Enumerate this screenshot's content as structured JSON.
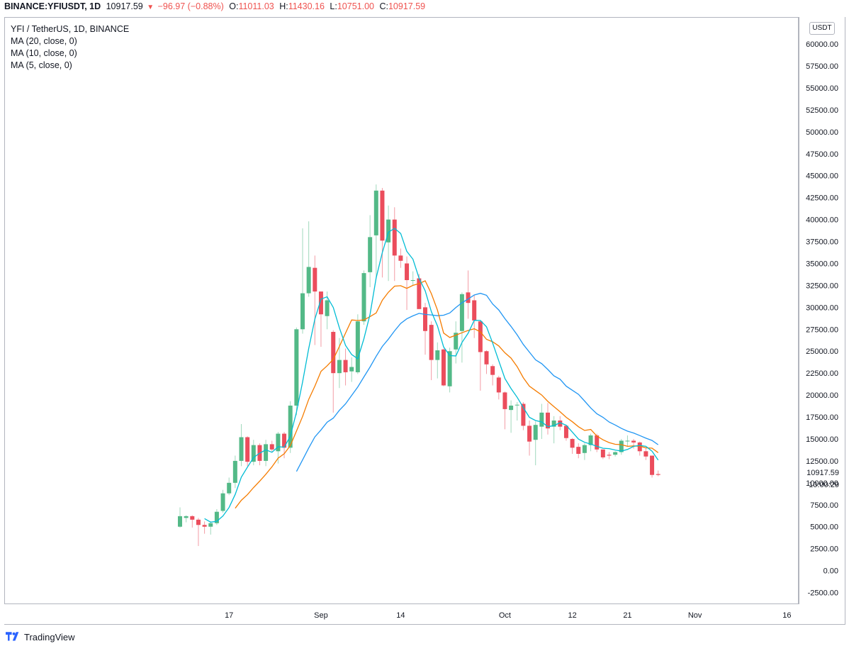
{
  "header": {
    "symbol": "BINANCE:YFIUSDT, 1D",
    "last": "10917.59",
    "change": "−96.97 (−0.88%)",
    "o_label": "O:",
    "o": "11011.03",
    "h_label": "H:",
    "h": "11430.16",
    "l_label": "L:",
    "l": "10751.00",
    "c_label": "C:",
    "c": "10917.59"
  },
  "legend": {
    "title": "YFI / TetherUS, 1D, BINANCE",
    "ma20": "MA (20, close, 0)",
    "ma10": "MA (10, close, 0)",
    "ma5": "MA (5, close, 0)"
  },
  "currency": "USDT",
  "price_tag": "10917.59",
  "countdown": "10:00:29",
  "footer": {
    "brand": "TradingView"
  },
  "colors": {
    "up": "#53b987",
    "down": "#eb4d5c",
    "ma20": "#2196f3",
    "ma10": "#f57c00",
    "ma5": "#00bcd4"
  },
  "chart_data": {
    "type": "candlestick",
    "ylim": [
      -3750,
      63000
    ],
    "y_ticks": [
      -2500,
      0,
      2500,
      5000,
      7500,
      10000,
      12500,
      15000,
      17500,
      20000,
      22500,
      25000,
      27500,
      30000,
      32500,
      35000,
      37500,
      40000,
      42500,
      45000,
      47500,
      50000,
      52500,
      55000,
      57500,
      60000
    ],
    "x_tick_labels": [
      {
        "index": 8,
        "label": "17"
      },
      {
        "index": 23,
        "label": "Sep"
      },
      {
        "index": 36,
        "label": "14"
      },
      {
        "index": 53,
        "label": "Oct"
      },
      {
        "index": 64,
        "label": "12"
      },
      {
        "index": 73,
        "label": "21"
      },
      {
        "index": 84,
        "label": "Nov"
      },
      {
        "index": 99,
        "label": "16"
      }
    ],
    "candles": [
      [
        5000,
        6200,
        7200,
        4900
      ],
      [
        6000,
        6200,
        6300,
        5500
      ],
      [
        6200,
        5800,
        6300,
        4900
      ],
      [
        5800,
        5200,
        6000,
        2800
      ],
      [
        5200,
        5000,
        5600,
        4200
      ],
      [
        5000,
        5400,
        5600,
        4100
      ],
      [
        5400,
        6700,
        7000,
        5200
      ],
      [
        6800,
        8800,
        9200,
        6600
      ],
      [
        8800,
        10000,
        10600,
        8600
      ],
      [
        10000,
        12500,
        13100,
        9400
      ],
      [
        12500,
        15200,
        16700,
        11900
      ],
      [
        15200,
        12400,
        15300,
        11900
      ],
      [
        12400,
        14300,
        14900,
        12000
      ],
      [
        14300,
        12500,
        14500,
        12000
      ],
      [
        12500,
        14400,
        14900,
        11900
      ],
      [
        14400,
        13800,
        14800,
        13500
      ],
      [
        13600,
        15600,
        15800,
        12200
      ],
      [
        15600,
        14000,
        15800,
        12800
      ],
      [
        14000,
        18800,
        19300,
        13400
      ],
      [
        18800,
        27500,
        27700,
        17700
      ],
      [
        27500,
        31600,
        39000,
        27000
      ],
      [
        31600,
        34600,
        39800,
        31200
      ],
      [
        34500,
        31800,
        35900,
        25700
      ],
      [
        31800,
        29200,
        31800,
        25500
      ],
      [
        29000,
        30800,
        31800,
        27500
      ],
      [
        27200,
        22500,
        27400,
        18000
      ],
      [
        22500,
        24000,
        26500,
        20800
      ],
      [
        24000,
        22600,
        25300,
        21100
      ],
      [
        22700,
        23200,
        24300,
        21500
      ],
      [
        22600,
        28400,
        29200,
        22400
      ],
      [
        28400,
        33900,
        34200,
        28000
      ],
      [
        34000,
        38000,
        40500,
        32300
      ],
      [
        38200,
        43300,
        44000,
        33300
      ],
      [
        43300,
        37600,
        43600,
        33400
      ],
      [
        37400,
        40000,
        41600,
        33000
      ],
      [
        40000,
        35900,
        41400,
        33000
      ],
      [
        35900,
        35300,
        36700,
        34500
      ],
      [
        35000,
        33100,
        35800,
        29700
      ],
      [
        33100,
        33100,
        34100,
        32500
      ],
      [
        33300,
        29800,
        33800,
        30500
      ],
      [
        30000,
        27300,
        30500,
        24600
      ],
      [
        28000,
        24000,
        28400,
        21700
      ],
      [
        24000,
        25100,
        26000,
        21900
      ],
      [
        25200,
        21100,
        25300,
        21000
      ],
      [
        21000,
        25000,
        25400,
        20300
      ],
      [
        25200,
        27100,
        28400,
        23600
      ],
      [
        27300,
        31500,
        31700,
        23700
      ],
      [
        31700,
        30500,
        34200,
        28700
      ],
      [
        30800,
        28500,
        31400,
        26500
      ],
      [
        28400,
        24900,
        28500,
        20500
      ],
      [
        25000,
        23500,
        25100,
        22400
      ],
      [
        23300,
        22300,
        23500,
        21100
      ],
      [
        22000,
        20300,
        22200,
        19500
      ],
      [
        20300,
        18400,
        20400,
        16100
      ],
      [
        18300,
        18800,
        19400,
        15700
      ],
      [
        18900,
        18900,
        19200,
        17100
      ],
      [
        19000,
        16500,
        19200,
        16000
      ],
      [
        16500,
        14700,
        17100,
        13100
      ],
      [
        14900,
        16600,
        17000,
        12000
      ],
      [
        16400,
        18000,
        19000,
        15000
      ],
      [
        18000,
        16200,
        19100,
        15500
      ],
      [
        16400,
        17100,
        17600,
        14500
      ],
      [
        17100,
        16400,
        17600,
        16000
      ],
      [
        16500,
        15100,
        16600,
        14800
      ],
      [
        15000,
        14000,
        15100,
        13300
      ],
      [
        14100,
        13300,
        14500,
        12800
      ],
      [
        13400,
        14300,
        14500,
        12600
      ],
      [
        14300,
        15400,
        15600,
        13600
      ],
      [
        15400,
        13800,
        15600,
        13500
      ],
      [
        13800,
        12900,
        13800,
        12700
      ],
      [
        13200,
        13100,
        13500,
        12700
      ],
      [
        13200,
        13500,
        13600,
        13000
      ],
      [
        13500,
        14800,
        15000,
        13200
      ],
      [
        14800,
        14800,
        15400,
        14100
      ],
      [
        14800,
        14600,
        15000,
        13900
      ],
      [
        14600,
        13600,
        14700,
        13100
      ],
      [
        13600,
        13000,
        14000,
        12600
      ],
      [
        13100,
        10900,
        13100,
        10600
      ],
      [
        11000,
        10900,
        11400,
        10750
      ]
    ],
    "ma5": [
      [
        4,
        5920
      ],
      [
        5,
        5520
      ],
      [
        6,
        5620
      ],
      [
        7,
        6220
      ],
      [
        8,
        7180
      ],
      [
        9,
        8680
      ],
      [
        10,
        10640
      ],
      [
        11,
        11780
      ],
      [
        12,
        12880
      ],
      [
        13,
        13380
      ],
      [
        14,
        13760
      ],
      [
        15,
        13480
      ],
      [
        16,
        14120
      ],
      [
        17,
        14060
      ],
      [
        18,
        15320
      ],
      [
        19,
        18080
      ],
      [
        20,
        21500
      ],
      [
        21,
        25300
      ],
      [
        22,
        28660
      ],
      [
        23,
        30940
      ],
      [
        24,
        31200
      ],
      [
        25,
        29980
      ],
      [
        26,
        27660
      ],
      [
        27,
        25660
      ],
      [
        28,
        24620
      ],
      [
        29,
        24140
      ],
      [
        30,
        26420
      ],
      [
        31,
        29220
      ],
      [
        32,
        33360
      ],
      [
        33,
        36240
      ],
      [
        34,
        38560
      ],
      [
        35,
        39000
      ],
      [
        36,
        38420
      ],
      [
        37,
        36380
      ],
      [
        38,
        35480
      ],
      [
        39,
        33300
      ],
      [
        40,
        31880
      ],
      [
        41,
        29500
      ],
      [
        42,
        27880
      ],
      [
        43,
        25480
      ],
      [
        44,
        24500
      ],
      [
        45,
        24460
      ],
      [
        46,
        26000
      ],
      [
        47,
        27040
      ],
      [
        48,
        28520
      ],
      [
        49,
        28500
      ],
      [
        50,
        27780
      ],
      [
        51,
        25920
      ],
      [
        52,
        23900
      ],
      [
        53,
        21880
      ],
      [
        54,
        20740
      ],
      [
        55,
        19740
      ],
      [
        56,
        18580
      ],
      [
        57,
        17460
      ],
      [
        58,
        17100
      ],
      [
        59,
        16940
      ],
      [
        60,
        16400
      ],
      [
        61,
        16520
      ],
      [
        62,
        16860
      ],
      [
        63,
        16560
      ],
      [
        64,
        15780
      ],
      [
        65,
        14980
      ],
      [
        66,
        14620
      ],
      [
        67,
        14420
      ],
      [
        68,
        14160
      ],
      [
        69,
        13940
      ],
      [
        70,
        13900
      ],
      [
        71,
        13740
      ],
      [
        72,
        13620
      ],
      [
        73,
        13800
      ],
      [
        74,
        14160
      ],
      [
        75,
        14260
      ],
      [
        76,
        14160
      ],
      [
        77,
        13600
      ],
      [
        78,
        12600
      ]
    ],
    "ma10": [
      [
        9,
        7100
      ],
      [
        10,
        8010
      ],
      [
        11,
        8650
      ],
      [
        12,
        9460
      ],
      [
        13,
        10190
      ],
      [
        14,
        10970
      ],
      [
        15,
        11830
      ],
      [
        16,
        12810
      ],
      [
        17,
        13320
      ],
      [
        18,
        14250
      ],
      [
        19,
        15900
      ],
      [
        20,
        17570
      ],
      [
        21,
        19510
      ],
      [
        22,
        21020
      ],
      [
        23,
        22710
      ],
      [
        24,
        23340
      ],
      [
        25,
        24070
      ],
      [
        26,
        25540
      ],
      [
        27,
        27070
      ],
      [
        28,
        28560
      ],
      [
        29,
        28500
      ],
      [
        30,
        28560
      ],
      [
        31,
        28950
      ],
      [
        32,
        29360
      ],
      [
        33,
        30810
      ],
      [
        34,
        31730
      ],
      [
        35,
        32410
      ],
      [
        36,
        32460
      ],
      [
        37,
        32160
      ],
      [
        38,
        32500
      ],
      [
        39,
        32700
      ],
      [
        40,
        33020
      ],
      [
        41,
        31560
      ],
      [
        42,
        29680
      ],
      [
        43,
        27060
      ],
      [
        44,
        26560
      ],
      [
        45,
        26830
      ],
      [
        46,
        27100
      ],
      [
        47,
        27360
      ],
      [
        48,
        27560
      ],
      [
        49,
        27200
      ],
      [
        50,
        26350
      ],
      [
        51,
        26070
      ],
      [
        52,
        25600
      ],
      [
        53,
        24820
      ],
      [
        54,
        24210
      ],
      [
        55,
        23230
      ],
      [
        56,
        21980
      ],
      [
        57,
        21020
      ],
      [
        58,
        20510
      ],
      [
        59,
        20000
      ],
      [
        60,
        19280
      ],
      [
        61,
        18680
      ],
      [
        62,
        18100
      ],
      [
        63,
        17460
      ],
      [
        64,
        16960
      ],
      [
        65,
        16390
      ],
      [
        66,
        15970
      ],
      [
        67,
        16080
      ],
      [
        68,
        15330
      ],
      [
        69,
        14900
      ],
      [
        70,
        14590
      ],
      [
        71,
        14390
      ],
      [
        72,
        14350
      ],
      [
        73,
        14160
      ],
      [
        74,
        14210
      ],
      [
        75,
        14170
      ],
      [
        76,
        13990
      ],
      [
        77,
        13950
      ],
      [
        78,
        13440
      ]
    ],
    "ma20": [
      [
        19,
        11300
      ],
      [
        20,
        12620
      ],
      [
        21,
        13960
      ],
      [
        22,
        15230
      ],
      [
        23,
        16030
      ],
      [
        24,
        16910
      ],
      [
        25,
        17370
      ],
      [
        26,
        18260
      ],
      [
        27,
        19000
      ],
      [
        28,
        19960
      ],
      [
        29,
        20930
      ],
      [
        30,
        22070
      ],
      [
        31,
        23200
      ],
      [
        32,
        24420
      ],
      [
        33,
        25540
      ],
      [
        34,
        26380
      ],
      [
        35,
        27320
      ],
      [
        36,
        28160
      ],
      [
        37,
        28690
      ],
      [
        38,
        29030
      ],
      [
        39,
        29310
      ],
      [
        40,
        29190
      ],
      [
        41,
        29130
      ],
      [
        42,
        29040
      ],
      [
        43,
        29100
      ],
      [
        44,
        29360
      ],
      [
        45,
        29980
      ],
      [
        46,
        30520
      ],
      [
        47,
        30940
      ],
      [
        48,
        31400
      ],
      [
        49,
        31600
      ],
      [
        50,
        31370
      ],
      [
        51,
        30380
      ],
      [
        52,
        29700
      ],
      [
        53,
        28700
      ],
      [
        54,
        27820
      ],
      [
        55,
        26850
      ],
      [
        56,
        25770
      ],
      [
        57,
        24900
      ],
      [
        58,
        24020
      ],
      [
        59,
        23580
      ],
      [
        60,
        22920
      ],
      [
        61,
        22190
      ],
      [
        62,
        21800
      ],
      [
        63,
        21010
      ],
      [
        64,
        20550
      ],
      [
        65,
        20080
      ],
      [
        66,
        19320
      ],
      [
        67,
        18530
      ],
      [
        68,
        17870
      ],
      [
        69,
        17460
      ],
      [
        70,
        16930
      ],
      [
        71,
        16590
      ],
      [
        72,
        16200
      ],
      [
        73,
        15890
      ],
      [
        74,
        15680
      ],
      [
        75,
        15390
      ],
      [
        76,
        15090
      ],
      [
        77,
        14830
      ],
      [
        78,
        14340
      ]
    ]
  }
}
